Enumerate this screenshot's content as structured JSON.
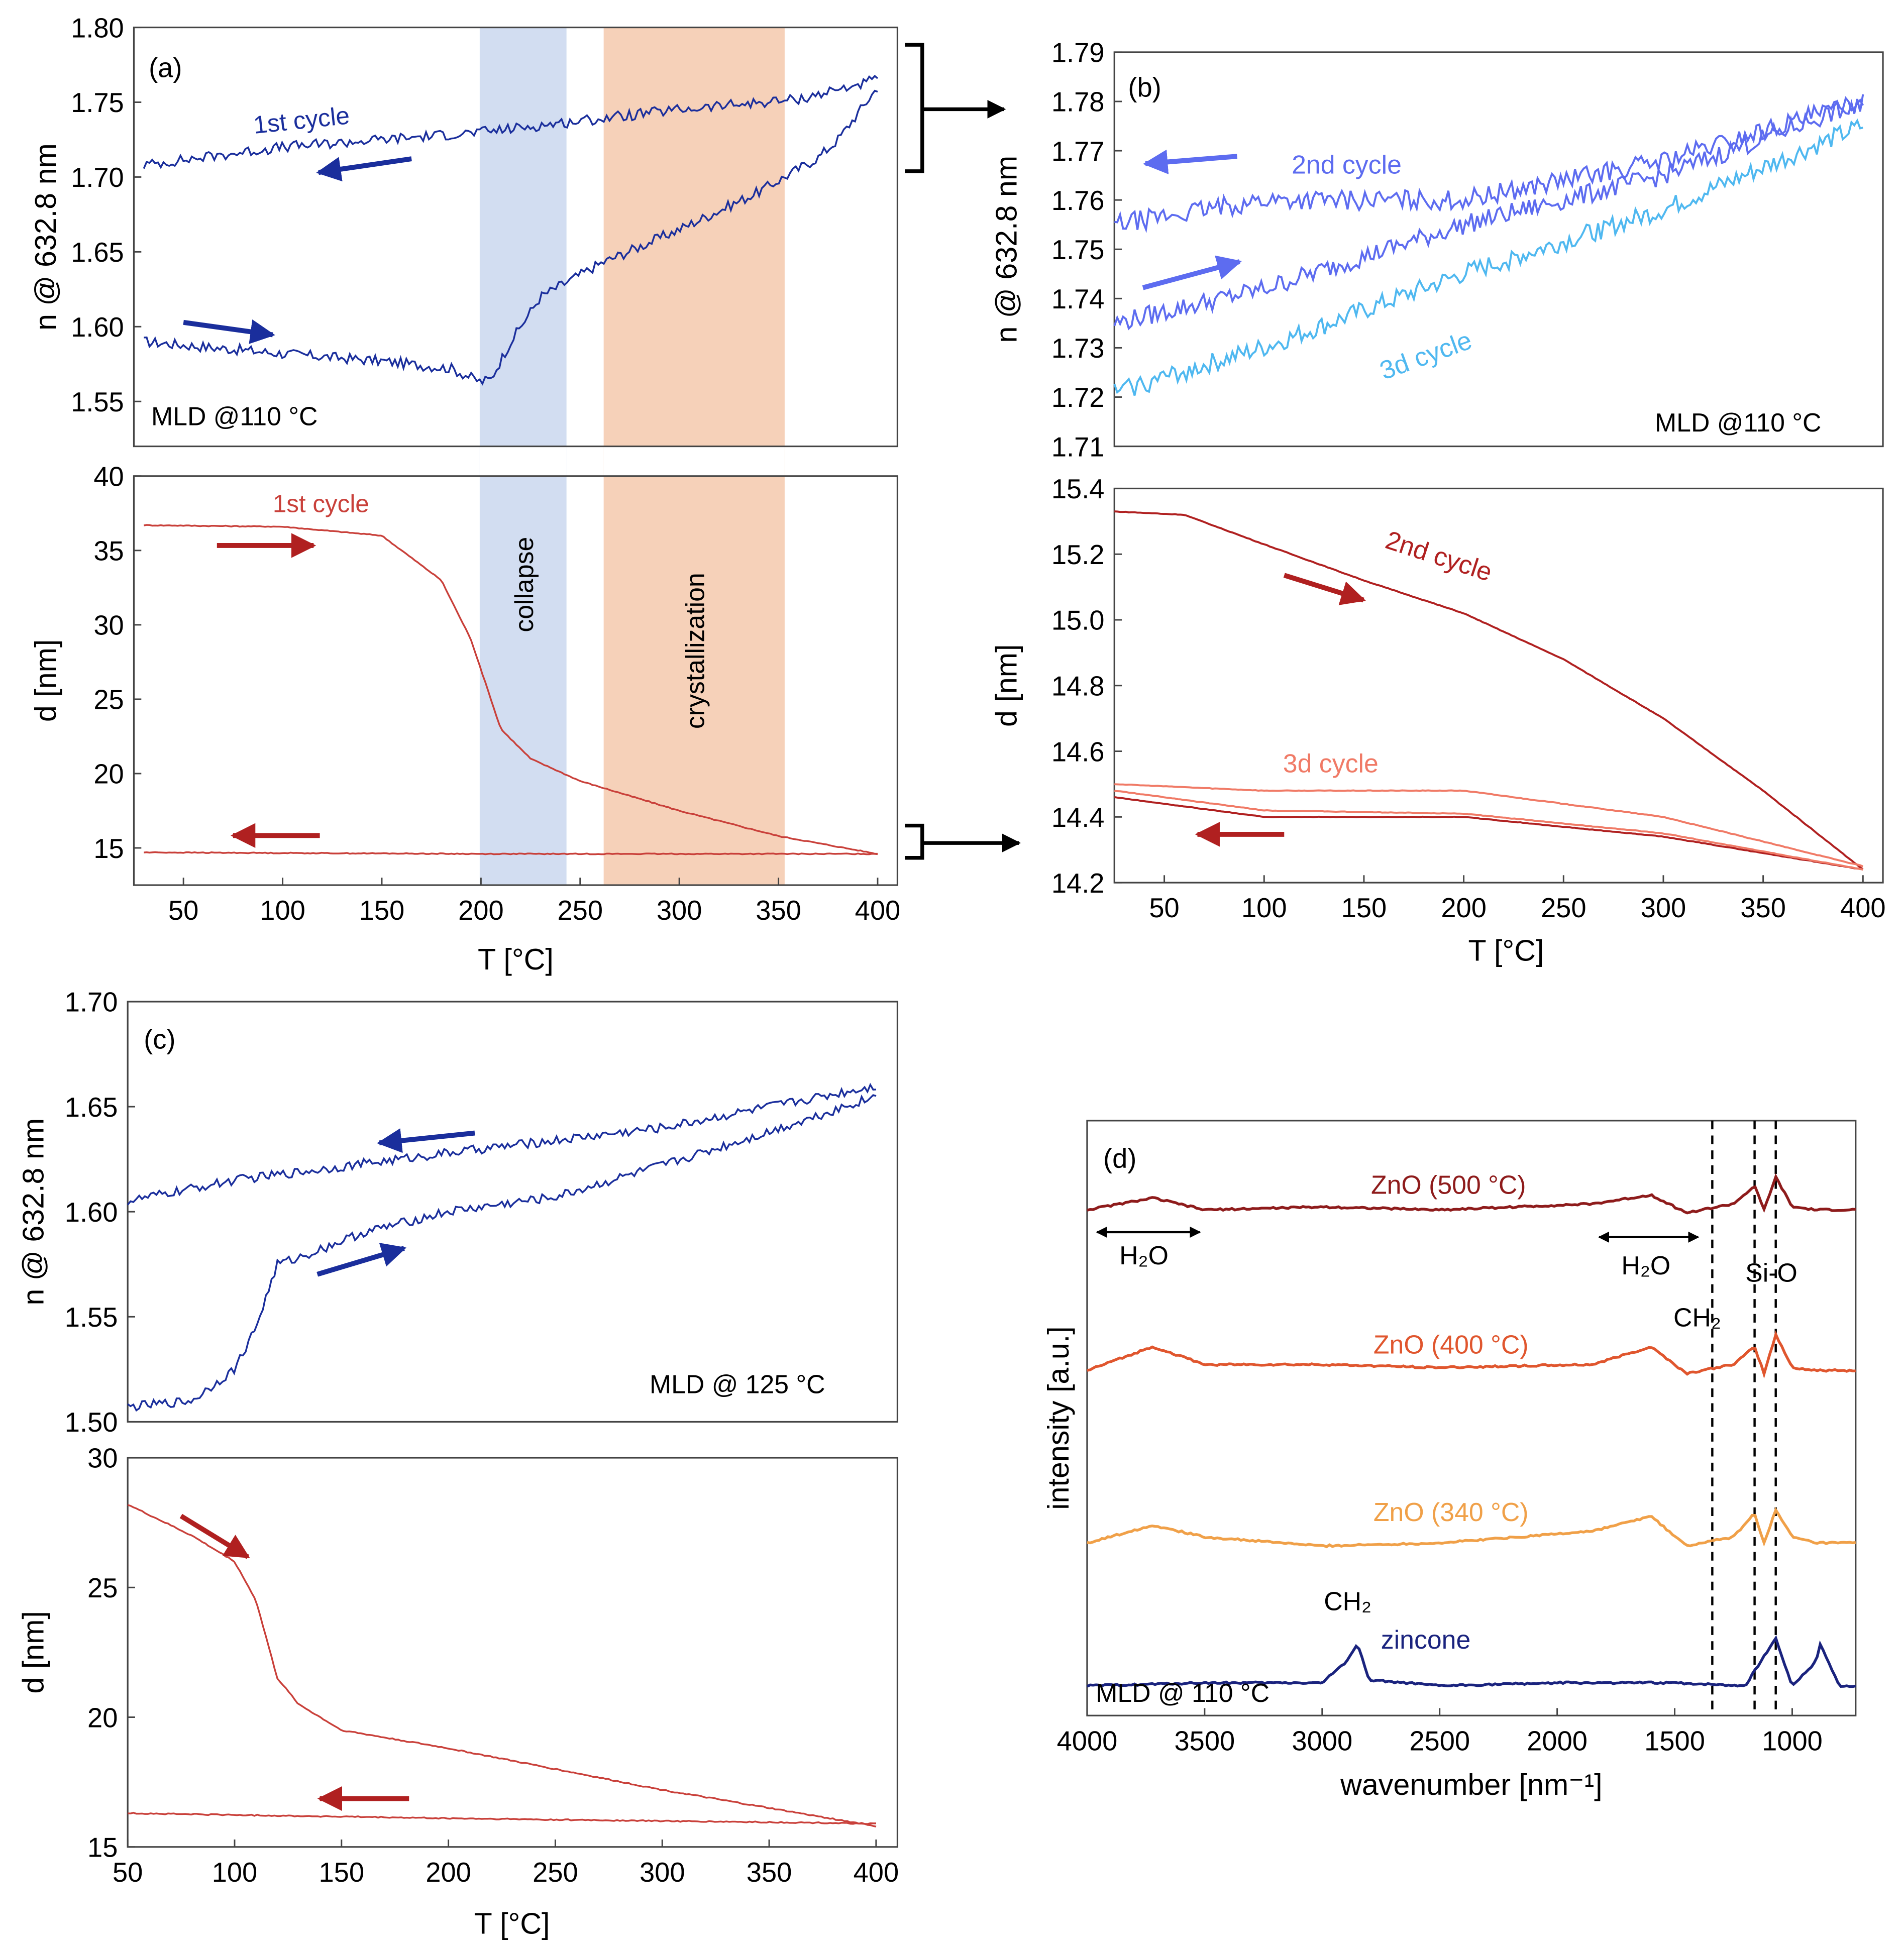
{
  "colors": {
    "blue_dark": "#1a2e9c",
    "blue_mid": "#5d6cf0",
    "blue_light": "#4fb8f0",
    "red_dark": "#b02020",
    "red_light": "#f07a66",
    "red_line": "#c9403a",
    "navy": "#1a237e",
    "maroon": "#8e1b1b",
    "orange_red": "#e0562e",
    "orange": "#f0a048",
    "collapse_band": "#c7d4ee",
    "cryst_band": "#f4c6a8"
  },
  "panels": {
    "a": {
      "label": "(a)",
      "n_cycle_label": "1st cycle",
      "mld_label": "MLD @110 °C",
      "d_cycle_label": "1st cycle",
      "collapse": "collapse",
      "crystallization": "crystallization",
      "xlabel": "T [°C]"
    },
    "b": {
      "label": "(b)",
      "cycle2": "2nd cycle",
      "cycle3": "3d cycle",
      "mld_label": "MLD @110 °C",
      "d_cycle2": "2nd cycle",
      "d_cycle3": "3d cycle",
      "xlabel": "T [°C]"
    },
    "c": {
      "label": "(c)",
      "mld_label": "MLD @ 125 °C",
      "xlabel": "T [°C]"
    },
    "d": {
      "label": "(d)",
      "ch2_top": "CH₂",
      "ch2_bottom": "CH₂",
      "sio": "Si-O",
      "h2o_left": "H₂O",
      "h2o_right": "H₂O",
      "zincone": "zincone",
      "mld_label": "MLD @ 110 °C",
      "xlabel": "wavenumber [nm⁻¹]",
      "ylabel": "intensity [a.u.]"
    }
  },
  "chart_data": [
    {
      "id": "a_n",
      "type": "line",
      "title": "",
      "xlabel": "",
      "ylabel": "n @ 632.8 nm",
      "xlim": [
        25,
        410
      ],
      "ylim": [
        1.52,
        1.8
      ],
      "yticks": [
        1.55,
        1.6,
        1.65,
        1.7,
        1.75,
        1.8
      ],
      "ytick_labels": [
        "1.55",
        "1.60",
        "1.65",
        "1.70",
        "1.75",
        "1.80"
      ],
      "series": [
        {
          "name": "1st cycle heating",
          "color": "#1a2e9c",
          "x": [
            30,
            100,
            150,
            185,
            200,
            205,
            215,
            230,
            260,
            300,
            340,
            370,
            380,
            400
          ],
          "y": [
            1.59,
            1.582,
            1.577,
            1.572,
            1.563,
            1.565,
            1.59,
            1.62,
            1.642,
            1.665,
            1.69,
            1.713,
            1.725,
            1.76
          ]
        },
        {
          "name": "1st cycle cooling",
          "color": "#1a2e9c",
          "x": [
            30,
            100,
            200,
            300,
            360,
            400
          ],
          "y": [
            1.708,
            1.72,
            1.73,
            1.745,
            1.752,
            1.765
          ]
        }
      ]
    },
    {
      "id": "a_d",
      "type": "line",
      "title": "",
      "xlabel": "T [°C]",
      "ylabel": "d [nm]",
      "xlim": [
        25,
        410
      ],
      "ylim": [
        12.5,
        40
      ],
      "xticks": [
        50,
        100,
        150,
        200,
        250,
        300,
        350,
        400
      ],
      "xtick_labels": [
        "50",
        "100",
        "150",
        "200",
        "250",
        "300",
        "350",
        "400"
      ],
      "yticks": [
        15,
        20,
        25,
        30,
        35,
        40
      ],
      "ytick_labels": [
        "15",
        "20",
        "25",
        "30",
        "35",
        "40"
      ],
      "bands": [
        {
          "name": "collapse",
          "x": [
            200,
            244
          ]
        },
        {
          "name": "crystallization",
          "x": [
            263,
            354
          ]
        }
      ],
      "series": [
        {
          "name": "1st cycle heating",
          "color": "#c9403a",
          "x": [
            30,
            100,
            150,
            180,
            195,
            210,
            225,
            250,
            300,
            350,
            400
          ],
          "y": [
            36.7,
            36.6,
            36.0,
            33.0,
            29.0,
            23.0,
            21.0,
            19.5,
            17.5,
            15.8,
            14.6
          ]
        },
        {
          "name": "1st cycle cooling",
          "color": "#c9403a",
          "x": [
            30,
            200,
            370,
            400
          ],
          "y": [
            14.7,
            14.6,
            14.6,
            14.6
          ]
        }
      ]
    },
    {
      "id": "b_n",
      "type": "line",
      "title": "",
      "xlabel": "",
      "ylabel": "n @ 632.8 nm",
      "xlim": [
        25,
        410
      ],
      "ylim": [
        1.71,
        1.79
      ],
      "yticks": [
        1.71,
        1.72,
        1.73,
        1.74,
        1.75,
        1.76,
        1.77,
        1.78,
        1.79
      ],
      "ytick_labels": [
        "1.71",
        "1.72",
        "1.73",
        "1.74",
        "1.75",
        "1.76",
        "1.77",
        "1.78",
        "1.79"
      ],
      "series": [
        {
          "name": "2nd cycle heating",
          "color": "#5d6cf0",
          "x": [
            25,
            100,
            200,
            300,
            400
          ],
          "y": [
            1.735,
            1.742,
            1.755,
            1.765,
            1.78
          ]
        },
        {
          "name": "2nd cycle cooling",
          "color": "#5d6cf0",
          "x": [
            25,
            100,
            200,
            300,
            400
          ],
          "y": [
            1.755,
            1.76,
            1.76,
            1.768,
            1.78
          ]
        },
        {
          "name": "3d cycle",
          "color": "#4fb8f0",
          "x": [
            25,
            100,
            200,
            300,
            400
          ],
          "y": [
            1.721,
            1.73,
            1.745,
            1.758,
            1.775
          ]
        }
      ]
    },
    {
      "id": "b_d",
      "type": "line",
      "title": "",
      "xlabel": "T [°C]",
      "ylabel": "d [nm]",
      "xlim": [
        25,
        410
      ],
      "ylim": [
        14.2,
        15.4
      ],
      "xticks": [
        50,
        100,
        150,
        200,
        250,
        300,
        350,
        400
      ],
      "xtick_labels": [
        "50",
        "100",
        "150",
        "200",
        "250",
        "300",
        "350",
        "400"
      ],
      "yticks": [
        14.2,
        14.4,
        14.6,
        14.8,
        15.0,
        15.2,
        15.4
      ],
      "ytick_labels": [
        "14.2",
        "14.4",
        "14.6",
        "14.8",
        "15.0",
        "15.2",
        "15.4"
      ],
      "series": [
        {
          "name": "2nd cycle heating",
          "color": "#b02020",
          "x": [
            25,
            60,
            100,
            150,
            200,
            250,
            300,
            350,
            400
          ],
          "y": [
            15.33,
            15.32,
            15.23,
            15.12,
            15.02,
            14.88,
            14.7,
            14.48,
            14.24
          ]
        },
        {
          "name": "2nd cycle cooling",
          "color": "#b02020",
          "x": [
            25,
            100,
            200,
            300,
            400
          ],
          "y": [
            14.46,
            14.4,
            14.4,
            14.34,
            14.24
          ]
        },
        {
          "name": "3d cycle upper",
          "color": "#f07a66",
          "x": [
            25,
            100,
            200,
            300,
            400
          ],
          "y": [
            14.5,
            14.48,
            14.48,
            14.4,
            14.25
          ]
        },
        {
          "name": "3d cycle lower",
          "color": "#f07a66",
          "x": [
            25,
            100,
            200,
            300,
            400
          ],
          "y": [
            14.48,
            14.42,
            14.41,
            14.35,
            14.24
          ]
        }
      ]
    },
    {
      "id": "c_n",
      "type": "line",
      "title": "",
      "xlabel": "",
      "ylabel": "n @ 632.8 nm",
      "xlim": [
        50,
        410
      ],
      "ylim": [
        1.5,
        1.7
      ],
      "yticks": [
        1.5,
        1.55,
        1.6,
        1.65,
        1.7
      ],
      "ytick_labels": [
        "1.50",
        "1.55",
        "1.60",
        "1.65",
        "1.70"
      ],
      "series": [
        {
          "name": "heating",
          "color": "#1a2e9c",
          "x": [
            50,
            80,
            100,
            110,
            120,
            130,
            160,
            200,
            250,
            300,
            350,
            400
          ],
          "y": [
            1.507,
            1.51,
            1.525,
            1.545,
            1.575,
            1.578,
            1.59,
            1.6,
            1.607,
            1.622,
            1.638,
            1.655
          ]
        },
        {
          "name": "cooling",
          "color": "#1a2e9c",
          "x": [
            50,
            100,
            200,
            300,
            400
          ],
          "y": [
            1.605,
            1.615,
            1.628,
            1.64,
            1.66
          ]
        }
      ]
    },
    {
      "id": "c_d",
      "type": "line",
      "title": "",
      "xlabel": "T [°C]",
      "ylabel": "d [nm]",
      "xlim": [
        50,
        410
      ],
      "ylim": [
        15,
        30
      ],
      "xticks": [
        50,
        100,
        150,
        200,
        250,
        300,
        350,
        400
      ],
      "xtick_labels": [
        "50",
        "100",
        "150",
        "200",
        "250",
        "300",
        "350",
        "400"
      ],
      "yticks": [
        15,
        20,
        25,
        30
      ],
      "ytick_labels": [
        "15",
        "20",
        "25",
        "30"
      ],
      "series": [
        {
          "name": "heating",
          "color": "#c9403a",
          "x": [
            50,
            80,
            100,
            110,
            115,
            120,
            130,
            150,
            200,
            250,
            300,
            350,
            400
          ],
          "y": [
            28.2,
            27.0,
            26.0,
            24.5,
            23.0,
            21.5,
            20.5,
            19.5,
            18.8,
            18.0,
            17.2,
            16.5,
            15.8
          ]
        },
        {
          "name": "cooling",
          "color": "#c9403a",
          "x": [
            50,
            200,
            400
          ],
          "y": [
            16.3,
            16.1,
            15.9
          ]
        }
      ]
    },
    {
      "id": "d_ftir",
      "type": "line",
      "title": "",
      "xlabel": "wavenumber [nm⁻¹]",
      "ylabel": "intensity [a.u.]",
      "xlim": [
        4000,
        730
      ],
      "ylim": [
        0,
        1
      ],
      "xticks": [
        4000,
        3500,
        3000,
        2500,
        2000,
        1500,
        1000
      ],
      "xtick_labels": [
        "4000",
        "3500",
        "3000",
        "2500",
        "2000",
        "1500",
        "1000"
      ],
      "markers": [
        1340,
        1160,
        1070
      ],
      "series": [
        {
          "name": "ZnO (500 °C)",
          "color": "#8e1b1b",
          "x": [
            4000,
            3720,
            3500,
            3000,
            2500,
            1850,
            1600,
            1450,
            1250,
            1160,
            1120,
            1070,
            1000,
            900,
            730
          ],
          "y": [
            0.85,
            0.87,
            0.85,
            0.855,
            0.85,
            0.86,
            0.875,
            0.845,
            0.86,
            0.89,
            0.85,
            0.905,
            0.855,
            0.85,
            0.85
          ]
        },
        {
          "name": "ZnO (400 °C)",
          "color": "#e0562e",
          "x": [
            4000,
            3720,
            3500,
            3000,
            2500,
            1850,
            1600,
            1450,
            1250,
            1160,
            1120,
            1070,
            1000,
            900,
            730
          ],
          "y": [
            0.58,
            0.62,
            0.59,
            0.59,
            0.585,
            0.59,
            0.62,
            0.575,
            0.59,
            0.62,
            0.575,
            0.64,
            0.585,
            0.58,
            0.58
          ]
        },
        {
          "name": "ZnO (340 °C)",
          "color": "#f0a048",
          "x": [
            4000,
            3720,
            3500,
            3000,
            2500,
            1850,
            1600,
            1450,
            1250,
            1160,
            1120,
            1070,
            1000,
            900,
            730
          ],
          "y": [
            0.29,
            0.32,
            0.3,
            0.285,
            0.29,
            0.31,
            0.335,
            0.285,
            0.3,
            0.34,
            0.29,
            0.345,
            0.3,
            0.29,
            0.29
          ]
        },
        {
          "name": "MLD @ 110 °C",
          "color": "#1a237e",
          "x": [
            4000,
            3500,
            3000,
            2900,
            2850,
            2800,
            2500,
            2000,
            1500,
            1200,
            1070,
            1000,
            900,
            880,
            800,
            730
          ],
          "y": [
            0.05,
            0.055,
            0.055,
            0.09,
            0.12,
            0.06,
            0.05,
            0.055,
            0.055,
            0.05,
            0.13,
            0.05,
            0.09,
            0.12,
            0.05,
            0.05
          ]
        }
      ]
    }
  ]
}
